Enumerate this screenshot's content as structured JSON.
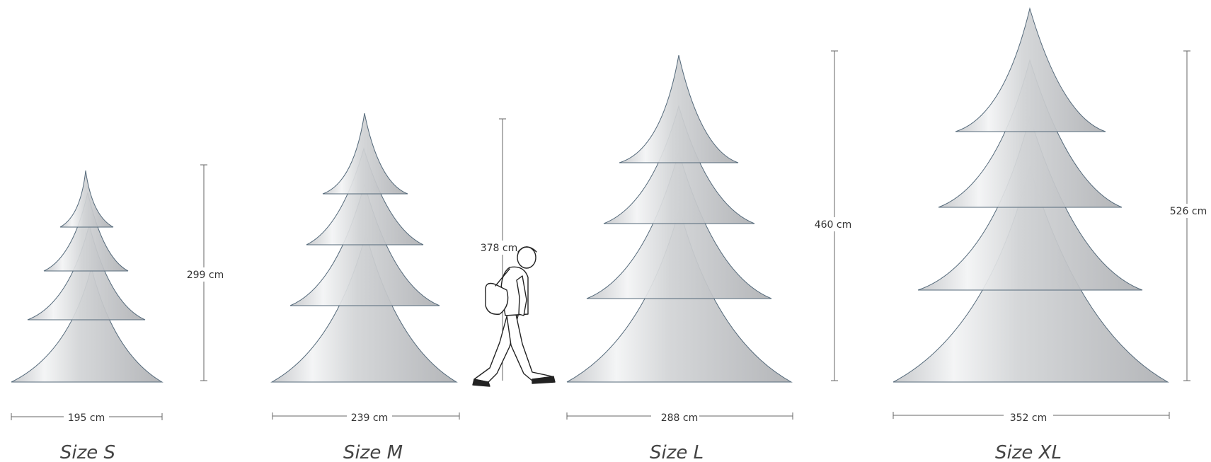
{
  "sizes": [
    {
      "name": "Size S",
      "width": "195 cm",
      "height": "299 cm"
    },
    {
      "name": "Size M",
      "width": "239 cm",
      "height": "378 cm"
    },
    {
      "name": "Size L",
      "width": "288 cm",
      "height": "460 cm"
    },
    {
      "name": "Size XL",
      "width": "352 cm",
      "height": "526 cm"
    }
  ],
  "colors": {
    "tree_fill_light": "#f1f2f3",
    "tree_fill_dark": "#b9bbbe",
    "tier_edge": "#54697a",
    "dimension_line": "#666666"
  },
  "icons": {
    "person": "walking-person-with-bag"
  }
}
